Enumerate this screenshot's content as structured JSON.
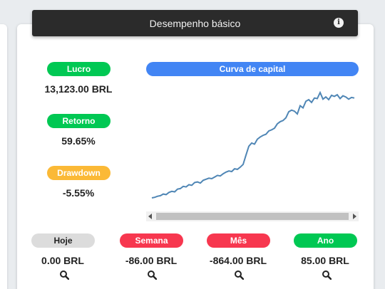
{
  "header": {
    "title": "Desempenho básico",
    "info_icon": "info-icon"
  },
  "stats": [
    {
      "label": "Lucro",
      "value": "13,123.00 BRL",
      "color": "#00c853"
    },
    {
      "label": "Retorno",
      "value": "59.65%",
      "color": "#00c853"
    },
    {
      "label": "Drawdown",
      "value": "-5.55%",
      "color": "#fbb936"
    }
  ],
  "chart": {
    "title": "Curva de capital",
    "title_color": "#4285f4",
    "line_color": "#4f86b5"
  },
  "chart_data": {
    "type": "line",
    "title": "Curva de capital",
    "xlabel": "",
    "ylabel": "",
    "grid": false,
    "values": [
      0.2,
      0.3,
      0.5,
      0.6,
      0.9,
      0.8,
      1.2,
      1.4,
      1.3,
      1.8,
      1.9,
      2.3,
      2.2,
      2.6,
      2.5,
      3.0,
      3.1,
      2.9,
      3.4,
      3.6,
      3.8,
      3.7,
      4.0,
      4.3,
      4.2,
      4.6,
      4.9,
      5.1,
      5.0,
      5.5,
      5.4,
      5.8,
      6.3,
      8.0,
      9.6,
      10.2,
      10.0,
      10.9,
      11.3,
      11.6,
      11.8,
      12.4,
      12.6,
      12.9,
      13.7,
      14.1,
      14.3,
      14.8,
      15.9,
      16.2,
      16.0,
      15.5,
      17.0,
      16.6,
      17.8,
      18.1,
      17.6,
      18.4,
      18.3,
      19.4,
      18.2,
      18.6,
      18.1,
      18.9,
      18.7,
      19.0,
      18.3,
      18.8,
      18.6,
      18.2,
      18.5,
      18.4
    ]
  },
  "periods": [
    {
      "label": "Hoje",
      "value": "0.00 BRL",
      "color": "#dcdcdc",
      "text_color": "#222",
      "icon": "search-icon"
    },
    {
      "label": "Semana",
      "value": "-86.00 BRL",
      "color": "#f7374f",
      "text_color": "#fff",
      "icon": "search-icon"
    },
    {
      "label": "Mês",
      "value": "-864.00 BRL",
      "color": "#f7374f",
      "text_color": "#fff",
      "icon": "search-icon"
    },
    {
      "label": "Ano",
      "value": "85.00 BRL",
      "color": "#00c853",
      "text_color": "#fff",
      "icon": "search-icon"
    }
  ]
}
